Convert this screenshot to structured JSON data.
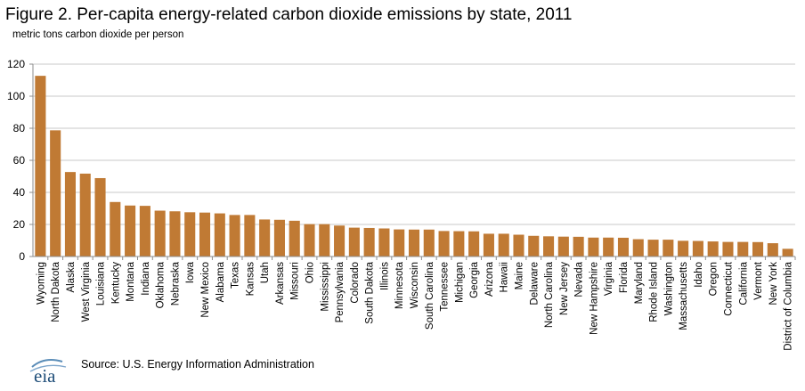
{
  "title": "Figure 2. Per-capita energy-related carbon dioxide emissions by state, 2011",
  "subtitle": "metric tons carbon dioxide per person",
  "footer": {
    "logo_text": "eia",
    "source": "Source:  U.S. Energy Information  Administration"
  },
  "colors": {
    "bar": "#C07A34",
    "axis": "#8C8C8C",
    "grid": "#C8C8C8"
  },
  "chart_data": {
    "type": "bar",
    "title": "Figure 2. Per-capita energy-related carbon dioxide emissions by state, 2011",
    "ylabel": "metric tons carbon dioxide per person",
    "ylim": [
      0,
      120
    ],
    "yticks": [
      0,
      20,
      40,
      60,
      80,
      100,
      120
    ],
    "grid": true,
    "categories": [
      "Wyoming",
      "North Dakota",
      "Alaska",
      "West Virginia",
      "Louisiana",
      "Kentucky",
      "Montana",
      "Indiana",
      "Oklahoma",
      "Nebraska",
      "Iowa",
      "New Mexico",
      "Alabama",
      "Texas",
      "Kansas",
      "Utah",
      "Arkansas",
      "Missouri",
      "Ohio",
      "Mississippi",
      "Pennsylvania",
      "Colorado",
      "South Dakota",
      "Illinois",
      "Minnesota",
      "Wisconsin",
      "South Carolina",
      "Tennessee",
      "Michigan",
      "Georgia",
      "Arizona",
      "Hawaii",
      "Maine",
      "Delaware",
      "North Carolina",
      "New Jersey",
      "Nevada",
      "New Hampshire",
      "Virginia",
      "Florida",
      "Maryland",
      "Rhode Island",
      "Washington",
      "Massachusetts",
      "Idaho",
      "Oregon",
      "Connecticut",
      "California",
      "Vermont",
      "New York",
      "District of Columbia"
    ],
    "values": [
      112.7,
      78.7,
      52.7,
      51.7,
      48.9,
      34.0,
      31.8,
      31.6,
      28.6,
      28.2,
      27.6,
      27.4,
      26.9,
      25.9,
      25.9,
      23.1,
      22.9,
      22.3,
      20.2,
      20.2,
      19.3,
      18.0,
      17.8,
      17.5,
      16.9,
      16.8,
      16.8,
      15.9,
      15.8,
      15.7,
      14.2,
      14.2,
      13.6,
      12.9,
      12.6,
      12.4,
      12.3,
      11.8,
      11.8,
      11.7,
      10.8,
      10.5,
      10.5,
      9.8,
      9.7,
      9.4,
      9.1,
      9.1,
      9.0,
      8.3,
      4.8
    ]
  }
}
